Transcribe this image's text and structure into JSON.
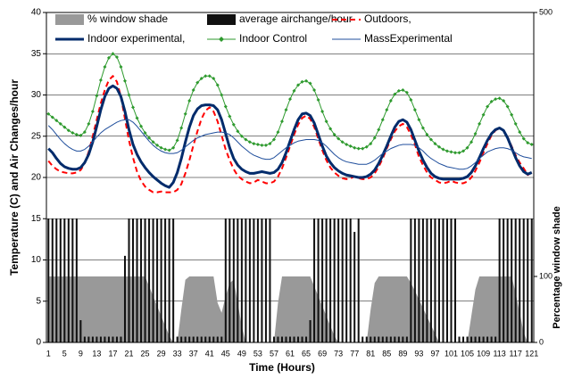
{
  "chart_data": {
    "type": "combo",
    "xlabel": "Time (Hours)",
    "ylabel": "Temperature (C)  and Air Changes/hour",
    "y2label": "Percentage window shade",
    "categories": [
      1,
      null,
      null,
      null,
      5,
      null,
      null,
      null,
      9,
      null,
      null,
      null,
      13,
      null,
      null,
      null,
      17,
      null,
      null,
      null,
      21,
      null,
      null,
      null,
      25,
      null,
      null,
      null,
      29,
      null,
      null,
      null,
      33,
      null,
      null,
      null,
      37,
      null,
      null,
      null,
      41,
      null,
      null,
      null,
      45,
      null,
      null,
      null,
      49,
      null,
      null,
      null,
      53,
      null,
      null,
      null,
      57,
      null,
      null,
      null,
      61,
      null,
      null,
      null,
      65,
      null,
      null,
      null,
      69,
      null,
      null,
      null,
      73,
      null,
      null,
      null,
      77,
      null,
      null,
      null,
      81,
      null,
      null,
      null,
      85,
      null,
      null,
      null,
      89,
      null,
      null,
      null,
      93,
      null,
      null,
      null,
      97,
      null,
      null,
      null,
      101,
      null,
      null,
      null,
      105,
      null,
      null,
      null,
      109,
      null,
      null,
      null,
      113,
      null,
      null,
      null,
      117,
      null,
      null,
      null,
      121
    ],
    "ylim": [
      0,
      40
    ],
    "yticks": [
      0,
      5,
      10,
      15,
      20,
      25,
      30,
      35,
      40
    ],
    "y2lim": [
      0,
      500
    ],
    "y2ticks": [
      0,
      100,
      500
    ],
    "grid": true,
    "series": [
      {
        "name": "% window shade",
        "type": "area",
        "axis": "y2",
        "color": "#999999",
        "values": [
          100,
          100,
          100,
          100,
          100,
          100,
          100,
          100,
          100,
          100,
          100,
          100,
          100,
          100,
          100,
          100,
          100,
          100,
          100,
          100,
          100,
          100,
          100,
          100,
          100,
          85,
          70,
          55,
          40,
          25,
          10,
          0,
          0,
          50,
          95,
          100,
          100,
          100,
          100,
          100,
          100,
          100,
          60,
          45,
          70,
          90,
          95,
          60,
          25,
          0,
          0,
          0,
          0,
          0,
          0,
          0,
          0,
          60,
          100,
          100,
          100,
          100,
          100,
          100,
          100,
          100,
          85,
          70,
          55,
          40,
          25,
          10,
          0,
          0,
          0,
          0,
          0,
          0,
          0,
          0,
          50,
          90,
          100,
          100,
          100,
          100,
          100,
          100,
          100,
          100,
          90,
          78,
          65,
          52,
          39,
          26,
          13,
          0,
          0,
          0,
          0,
          0,
          0,
          0,
          0,
          40,
          80,
          100,
          100,
          100,
          100,
          100,
          100,
          100,
          100,
          100,
          75,
          45,
          15,
          0,
          0
        ]
      },
      {
        "name": "average airchange/hour",
        "type": "bar",
        "color": "#111111",
        "values": [
          15,
          15,
          15,
          15,
          15,
          15,
          15,
          15,
          2.7,
          0.7,
          0.7,
          0.7,
          0.7,
          0.7,
          0.7,
          0.7,
          0.7,
          0.7,
          0.7,
          10.5,
          15,
          15,
          15,
          15,
          15,
          15,
          15,
          15,
          15,
          15,
          15,
          15,
          0.7,
          0.7,
          0.7,
          0.7,
          0.7,
          0.7,
          0.7,
          0.7,
          0.7,
          0.7,
          0.7,
          0.7,
          15,
          15,
          15,
          15,
          15,
          15,
          15,
          15,
          15,
          15,
          15,
          15,
          0.7,
          0.7,
          0.7,
          0.7,
          0.7,
          0.7,
          0.7,
          0.7,
          0.7,
          2.7,
          15,
          15,
          15,
          15,
          15,
          15,
          15,
          15,
          15,
          15,
          13.4,
          15,
          0.7,
          0.7,
          0.7,
          0.7,
          0.7,
          0.7,
          0.7,
          0.7,
          0.7,
          0.7,
          0.7,
          0.7,
          15,
          15,
          15,
          15,
          15,
          15,
          15,
          15,
          15,
          15,
          15,
          15,
          0.7,
          0.7,
          0.7,
          0.7,
          0.7,
          0.7,
          0.7,
          0.7,
          0.7,
          0.7,
          15,
          15,
          15,
          15,
          15,
          15,
          15,
          15,
          15
        ]
      },
      {
        "name": "Outdoors,",
        "type": "line",
        "color": "#ff0000",
        "dash": true,
        "weight": "thick",
        "values": [
          22.0,
          21.4,
          21.0,
          20.7,
          20.6,
          20.5,
          20.5,
          20.6,
          20.9,
          21.7,
          23.1,
          25.0,
          27.0,
          29.0,
          30.6,
          31.8,
          32.3,
          31.6,
          29.8,
          27.1,
          24.5,
          22.4,
          20.7,
          19.6,
          18.9,
          18.5,
          18.2,
          18.2,
          18.3,
          18.2,
          18.2,
          18.2,
          18.5,
          19.2,
          20.5,
          22.1,
          23.9,
          25.6,
          27.1,
          28.1,
          28.5,
          28.0,
          26.8,
          25.1,
          23.4,
          22.1,
          21.0,
          20.2,
          19.8,
          19.5,
          19.3,
          19.4,
          19.7,
          19.5,
          19.3,
          19.3,
          19.5,
          20.1,
          21.1,
          22.4,
          23.8,
          25.2,
          26.4,
          27.2,
          27.5,
          27.1,
          26.1,
          24.7,
          23.3,
          22.1,
          21.2,
          20.6,
          20.2,
          19.9,
          19.8,
          19.9,
          20.1,
          19.9,
          19.8,
          19.8,
          20.0,
          20.5,
          21.3,
          22.3,
          23.5,
          24.6,
          25.6,
          26.2,
          26.5,
          26.1,
          25.2,
          24.0,
          22.5,
          21.5,
          20.6,
          20.0,
          19.7,
          19.4,
          19.3,
          19.4,
          19.6,
          19.4,
          19.3,
          19.3,
          19.5,
          20.0,
          20.8,
          21.8,
          23.0,
          24.1,
          25.1,
          25.7,
          26.0,
          25.7,
          24.9,
          23.8,
          22.7,
          21.8,
          21.1,
          20.3,
          20.6
        ]
      },
      {
        "name": "Indoor experimental,",
        "type": "line",
        "color": "#002b6b",
        "weight": "heavy",
        "values": [
          23.5,
          23.0,
          22.3,
          21.7,
          21.3,
          21.1,
          21.0,
          21.0,
          21.2,
          21.8,
          22.8,
          24.3,
          26.2,
          28.2,
          29.8,
          30.8,
          31.1,
          30.8,
          29.8,
          28.0,
          25.8,
          24.0,
          22.8,
          21.9,
          21.2,
          20.6,
          20.1,
          19.7,
          19.3,
          19.0,
          18.8,
          19.4,
          20.6,
          22.3,
          24.3,
          26.1,
          27.5,
          28.3,
          28.7,
          28.8,
          28.8,
          28.7,
          28.2,
          27.0,
          25.3,
          23.6,
          22.3,
          21.5,
          21.0,
          20.7,
          20.5,
          20.5,
          20.6,
          20.7,
          20.6,
          20.5,
          20.6,
          21.0,
          21.8,
          23.0,
          24.4,
          25.8,
          27.0,
          27.7,
          27.8,
          27.5,
          26.6,
          25.2,
          23.8,
          22.6,
          21.8,
          21.2,
          20.8,
          20.5,
          20.3,
          20.2,
          20.1,
          20.0,
          20.0,
          20.1,
          20.4,
          20.9,
          21.7,
          22.7,
          23.8,
          25.0,
          26.1,
          26.8,
          27.0,
          26.7,
          25.8,
          24.5,
          23.2,
          22.1,
          21.2,
          20.5,
          20.1,
          19.9,
          19.8,
          19.8,
          19.8,
          19.8,
          19.8,
          19.9,
          20.1,
          20.6,
          21.4,
          22.4,
          23.5,
          24.5,
          25.3,
          25.8,
          26.0,
          25.7,
          24.8,
          23.6,
          22.4,
          21.4,
          20.7,
          20.4,
          20.6
        ]
      },
      {
        "name": "Indoor Control",
        "type": "line",
        "color": "#2e9a2e",
        "marker": "diamond",
        "weight": "thin",
        "values": [
          27.7,
          27.3,
          26.9,
          26.5,
          26.1,
          25.7,
          25.4,
          25.2,
          25.1,
          25.5,
          26.5,
          28.0,
          29.9,
          31.8,
          33.4,
          34.5,
          35.0,
          34.6,
          33.4,
          31.7,
          30.0,
          28.5,
          27.2,
          26.2,
          25.4,
          24.8,
          24.3,
          23.9,
          23.6,
          23.4,
          23.3,
          23.6,
          24.5,
          26.0,
          27.7,
          29.3,
          30.6,
          31.5,
          32.0,
          32.3,
          32.3,
          32.0,
          31.2,
          30.0,
          28.6,
          27.4,
          26.4,
          25.6,
          25.0,
          24.6,
          24.3,
          24.1,
          24.0,
          23.9,
          23.9,
          24.1,
          24.6,
          25.5,
          26.8,
          28.2,
          29.5,
          30.5,
          31.2,
          31.6,
          31.7,
          31.4,
          30.6,
          29.4,
          28.0,
          26.8,
          25.9,
          25.2,
          24.7,
          24.3,
          24.0,
          23.8,
          23.6,
          23.5,
          23.5,
          23.7,
          24.1,
          24.8,
          25.8,
          27.0,
          28.2,
          29.3,
          30.1,
          30.5,
          30.6,
          30.3,
          29.4,
          28.2,
          27.0,
          26.0,
          25.2,
          24.6,
          24.1,
          23.7,
          23.4,
          23.2,
          23.1,
          23.0,
          23.0,
          23.2,
          23.6,
          24.3,
          25.3,
          26.5,
          27.6,
          28.6,
          29.2,
          29.5,
          29.6,
          29.3,
          28.6,
          27.6,
          26.5,
          25.5,
          24.7,
          24.2,
          24.0
        ]
      },
      {
        "name": "MassExperimental",
        "type": "line",
        "color": "#1f4e9c",
        "weight": "thin",
        "values": [
          26.3,
          25.8,
          25.2,
          24.6,
          24.1,
          23.7,
          23.4,
          23.2,
          23.2,
          23.4,
          23.8,
          24.3,
          24.9,
          25.4,
          25.8,
          26.1,
          26.4,
          26.7,
          26.9,
          27.0,
          27.0,
          26.7,
          26.2,
          25.6,
          25.0,
          24.4,
          23.9,
          23.5,
          23.2,
          23.0,
          22.9,
          22.9,
          23.0,
          23.3,
          23.7,
          24.1,
          24.5,
          24.8,
          25.0,
          25.2,
          25.3,
          25.4,
          25.5,
          25.5,
          25.4,
          25.2,
          24.8,
          24.3,
          23.8,
          23.4,
          23.0,
          22.7,
          22.5,
          22.3,
          22.2,
          22.2,
          22.4,
          22.8,
          23.2,
          23.6,
          23.9,
          24.2,
          24.4,
          24.5,
          24.6,
          24.6,
          24.6,
          24.5,
          24.2,
          23.8,
          23.3,
          22.8,
          22.4,
          22.1,
          21.9,
          21.8,
          21.7,
          21.6,
          21.6,
          21.6,
          21.8,
          22.1,
          22.5,
          22.9,
          23.2,
          23.5,
          23.7,
          23.9,
          24.0,
          24.0,
          24.0,
          23.9,
          23.6,
          23.2,
          22.7,
          22.3,
          22.0,
          21.7,
          21.5,
          21.3,
          21.2,
          21.1,
          21.0,
          21.0,
          21.1,
          21.4,
          21.8,
          22.3,
          22.7,
          23.1,
          23.3,
          23.5,
          23.6,
          23.6,
          23.5,
          23.3,
          23.0,
          22.7,
          22.5,
          22.4,
          22.3
        ]
      }
    ]
  }
}
